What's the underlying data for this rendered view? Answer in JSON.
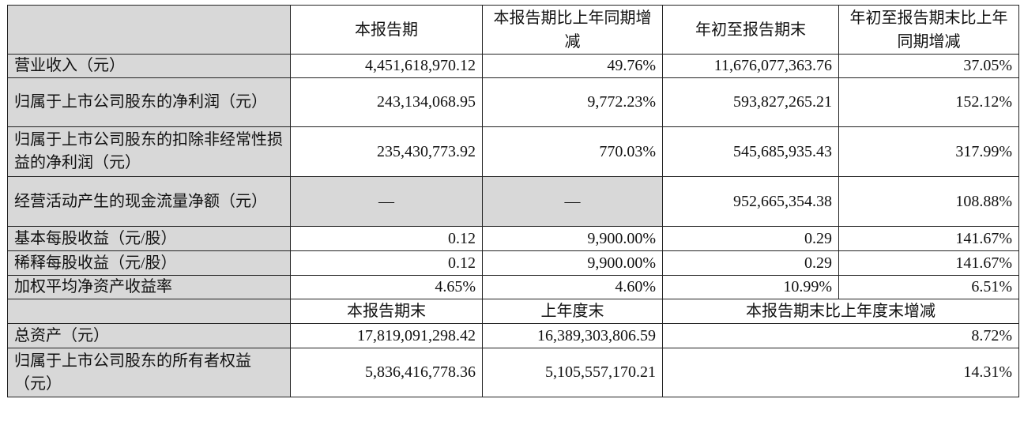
{
  "header": {
    "col1": "本报告期",
    "col2": "本报告期比上年同期增减",
    "col3": "年初至报告期末",
    "col4": "年初至报告期末比上年同期增减"
  },
  "rows": [
    {
      "label": "营业收入（元）",
      "v1": "4,451,618,970.12",
      "v2": "49.76%",
      "v3": "11,676,077,363.76",
      "v4": "37.05%"
    },
    {
      "label": "归属于上市公司股东的净利润（元）",
      "v1": "243,134,068.95",
      "v2": "9,772.23%",
      "v3": "593,827,265.21",
      "v4": "152.12%"
    },
    {
      "label": "归属于上市公司股东的扣除非经常性损益的净利润（元）",
      "v1": "235,430,773.92",
      "v2": "770.03%",
      "v3": "545,685,935.43",
      "v4": "317.99%"
    },
    {
      "label": "经营活动产生的现金流量净额（元）",
      "v1": "—",
      "v2": "—",
      "v3": "952,665,354.38",
      "v4": "108.88%"
    },
    {
      "label": "基本每股收益（元/股）",
      "v1": "0.12",
      "v2": "9,900.00%",
      "v3": "0.29",
      "v4": "141.67%"
    },
    {
      "label": "稀释每股收益（元/股）",
      "v1": "0.12",
      "v2": "9,900.00%",
      "v3": "0.29",
      "v4": "141.67%"
    },
    {
      "label": "加权平均净资产收益率",
      "v1": "4.65%",
      "v2": "4.60%",
      "v3": "10.99%",
      "v4": "6.51%"
    }
  ],
  "header2": {
    "col1": "本报告期末",
    "col2": "上年度末",
    "col3": "本报告期末比上年度末增减"
  },
  "rows2": [
    {
      "label": "总资产（元）",
      "v1": "17,819,091,298.42",
      "v2": "16,389,303,806.59",
      "v3": "8.72%"
    },
    {
      "label": "归属于上市公司股东的所有者权益（元）",
      "v1": "5,836,416,778.36",
      "v2": "5,105,557,170.21",
      "v3": "14.31%"
    }
  ]
}
